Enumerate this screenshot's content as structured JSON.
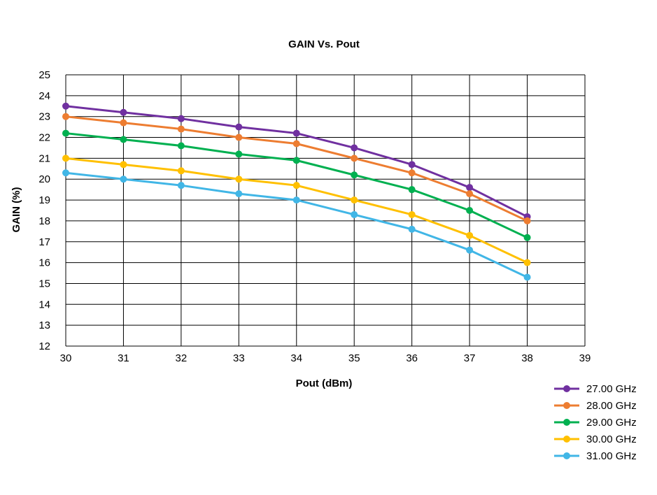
{
  "chart_data": {
    "type": "line",
    "title": "GAIN Vs. Pout",
    "xlabel": "Pout (dBm)",
    "ylabel": "GAIN (%)",
    "xlim": [
      30,
      39
    ],
    "ylim": [
      12,
      25
    ],
    "xticks": [
      "30",
      "31",
      "32",
      "33",
      "34",
      "35",
      "36",
      "37",
      "38",
      "39"
    ],
    "yticks": [
      "12",
      "13",
      "14",
      "15",
      "16",
      "17",
      "18",
      "19",
      "20",
      "21",
      "22",
      "23",
      "24",
      "25"
    ],
    "grid": true,
    "legend_position": "bottom-right",
    "x": [
      30,
      31,
      32,
      33,
      34,
      35,
      36,
      37,
      38
    ],
    "series": [
      {
        "name": "27.00 GHz",
        "color": "#7030A0",
        "values": [
          23.5,
          23.2,
          22.9,
          22.5,
          22.2,
          21.5,
          20.7,
          19.6,
          18.2
        ]
      },
      {
        "name": "28.00 GHz",
        "color": "#ED7D31",
        "values": [
          23.0,
          22.7,
          22.4,
          22.0,
          21.7,
          21.0,
          20.3,
          19.3,
          18.0
        ]
      },
      {
        "name": "29.00 GHz",
        "color": "#00B050",
        "values": [
          22.2,
          21.9,
          21.6,
          21.2,
          20.9,
          20.2,
          19.5,
          18.5,
          17.2
        ]
      },
      {
        "name": "30.00 GHz",
        "color": "#FFC000",
        "values": [
          21.0,
          20.7,
          20.4,
          20.0,
          19.7,
          19.0,
          18.3,
          17.3,
          16.0
        ]
      },
      {
        "name": "31.00 GHz",
        "color": "#41B6E6",
        "values": [
          20.3,
          20.0,
          19.7,
          19.3,
          19.0,
          18.3,
          17.6,
          16.6,
          15.3
        ]
      }
    ]
  }
}
